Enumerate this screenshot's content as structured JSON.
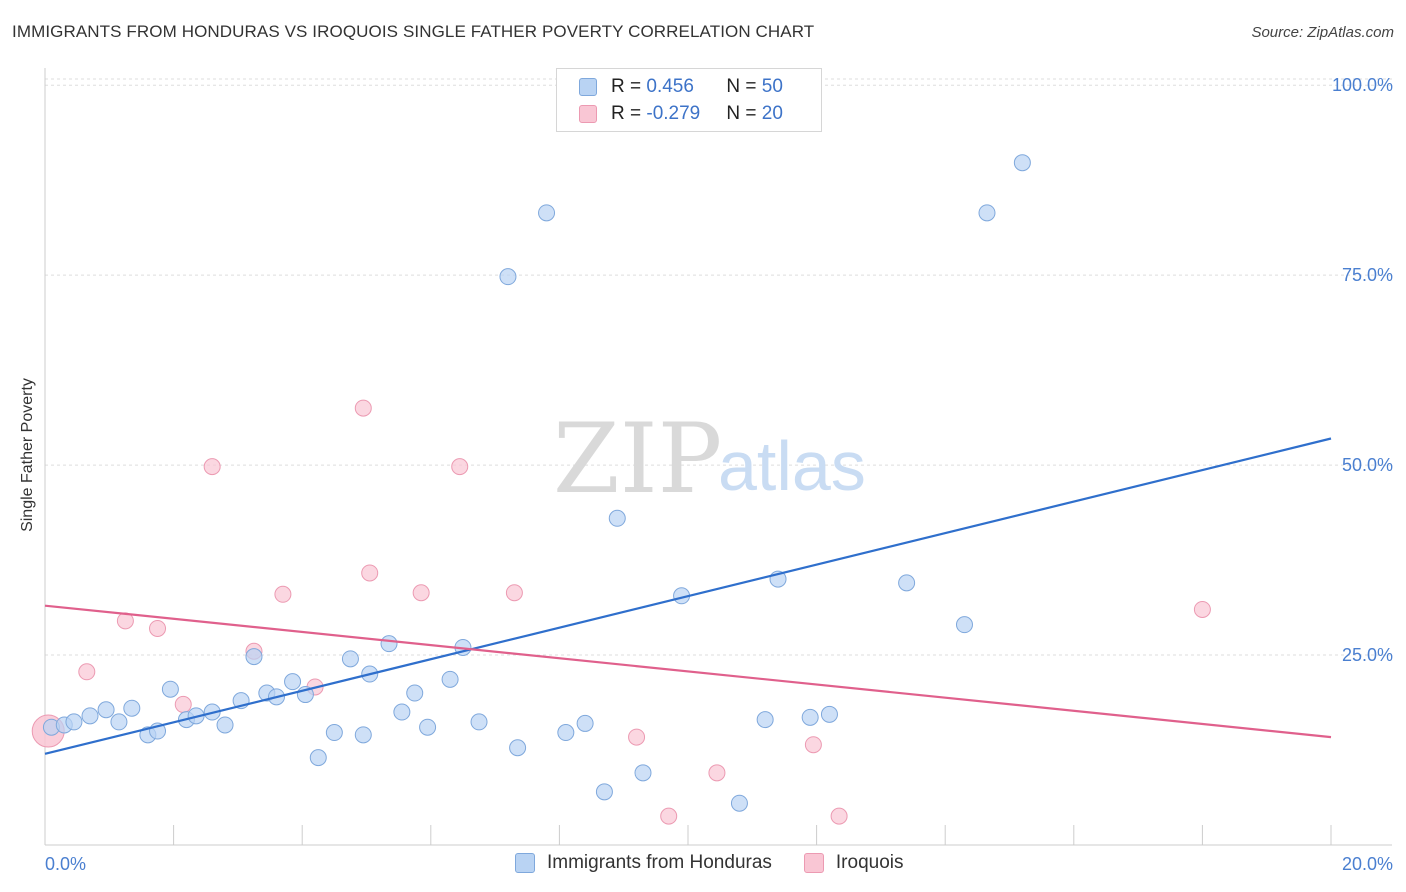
{
  "header": {
    "title": "IMMIGRANTS FROM HONDURAS VS IROQUOIS SINGLE FATHER POVERTY CORRELATION CHART",
    "source": "Source: ZipAtlas.com"
  },
  "watermark": {
    "zip": "ZIP",
    "atlas": "atlas"
  },
  "legend": {
    "rows": [
      {
        "r_label": "R = ",
        "r_value": "0.456",
        "n_label": "N = ",
        "n_value": "50"
      },
      {
        "r_label": "R = ",
        "r_value": "-0.279",
        "n_label": "N = ",
        "n_value": "20"
      }
    ]
  },
  "colors": {
    "blue_fill": "#b9d3f3",
    "blue_stroke": "#7fa8dc",
    "blue_line": "#2f6fcc",
    "pink_fill": "#f9c6d4",
    "pink_stroke": "#ec9ab2",
    "pink_line": "#e0608c",
    "tick_text": "#4a7fd0",
    "grid": "#dddddd"
  },
  "chart_data": {
    "type": "scatter",
    "title": "IMMIGRANTS FROM HONDURAS VS IROQUOIS SINGLE FATHER POVERTY CORRELATION CHART",
    "xlabel": "",
    "ylabel": "Single Father Poverty",
    "xlim": [
      0,
      20
    ],
    "ylim": [
      0,
      102
    ],
    "x_tick_labels": [
      "0.0%",
      "20.0%"
    ],
    "y_ticks": [
      25,
      50,
      75,
      100
    ],
    "y_tick_labels": [
      "25.0%",
      "50.0%",
      "75.0%",
      "100.0%"
    ],
    "grid": true,
    "series": [
      {
        "name": "Immigrants from Honduras",
        "color": "#b9d3f3",
        "points": [
          [
            0.1,
            15.5
          ],
          [
            0.3,
            15.8
          ],
          [
            0.45,
            16.2
          ],
          [
            0.7,
            17.0
          ],
          [
            0.95,
            17.8
          ],
          [
            1.15,
            16.2
          ],
          [
            1.35,
            18.0
          ],
          [
            1.6,
            14.5
          ],
          [
            1.75,
            15.0
          ],
          [
            1.95,
            20.5
          ],
          [
            2.2,
            16.5
          ],
          [
            2.35,
            17.0
          ],
          [
            2.6,
            17.5
          ],
          [
            2.8,
            15.8
          ],
          [
            3.05,
            19.0
          ],
          [
            3.25,
            24.8
          ],
          [
            3.45,
            20.0
          ],
          [
            3.6,
            19.5
          ],
          [
            3.85,
            21.5
          ],
          [
            4.05,
            19.8
          ],
          [
            4.25,
            11.5
          ],
          [
            4.5,
            14.8
          ],
          [
            4.75,
            24.5
          ],
          [
            4.95,
            14.5
          ],
          [
            5.05,
            22.5
          ],
          [
            5.35,
            26.5
          ],
          [
            5.55,
            17.5
          ],
          [
            5.75,
            20.0
          ],
          [
            5.95,
            15.5
          ],
          [
            6.3,
            21.8
          ],
          [
            6.5,
            26.0
          ],
          [
            6.75,
            16.2
          ],
          [
            7.2,
            74.8
          ],
          [
            7.35,
            12.8
          ],
          [
            7.8,
            83.2
          ],
          [
            8.1,
            14.8
          ],
          [
            8.4,
            16.0
          ],
          [
            8.7,
            7.0
          ],
          [
            8.9,
            43.0
          ],
          [
            9.3,
            9.5
          ],
          [
            9.9,
            32.8
          ],
          [
            10.8,
            5.5
          ],
          [
            11.2,
            16.5
          ],
          [
            11.4,
            35.0
          ],
          [
            11.9,
            16.8
          ],
          [
            12.2,
            17.2
          ],
          [
            13.4,
            34.5
          ],
          [
            14.3,
            29.0
          ],
          [
            14.65,
            83.2
          ],
          [
            15.2,
            89.8
          ]
        ]
      },
      {
        "name": "Iroquois",
        "color": "#f9c6d4",
        "points": [
          [
            0.05,
            15.0
          ],
          [
            0.65,
            22.8
          ],
          [
            1.25,
            29.5
          ],
          [
            1.75,
            28.5
          ],
          [
            2.15,
            18.5
          ],
          [
            2.6,
            49.8
          ],
          [
            3.25,
            25.5
          ],
          [
            3.7,
            33.0
          ],
          [
            4.2,
            20.8
          ],
          [
            4.95,
            57.5
          ],
          [
            5.05,
            35.8
          ],
          [
            5.85,
            33.2
          ],
          [
            6.45,
            49.8
          ],
          [
            7.3,
            33.2
          ],
          [
            9.2,
            14.2
          ],
          [
            9.7,
            3.8
          ],
          [
            10.45,
            9.5
          ],
          [
            11.95,
            13.2
          ],
          [
            12.35,
            3.8
          ],
          [
            18.0,
            31.0
          ]
        ]
      }
    ],
    "trendlines": [
      {
        "series": "Immigrants from Honduras",
        "x": [
          0,
          20
        ],
        "y": [
          12.0,
          53.5
        ]
      },
      {
        "series": "Iroquois",
        "x": [
          0,
          20
        ],
        "y": [
          31.5,
          14.2
        ]
      }
    ]
  }
}
